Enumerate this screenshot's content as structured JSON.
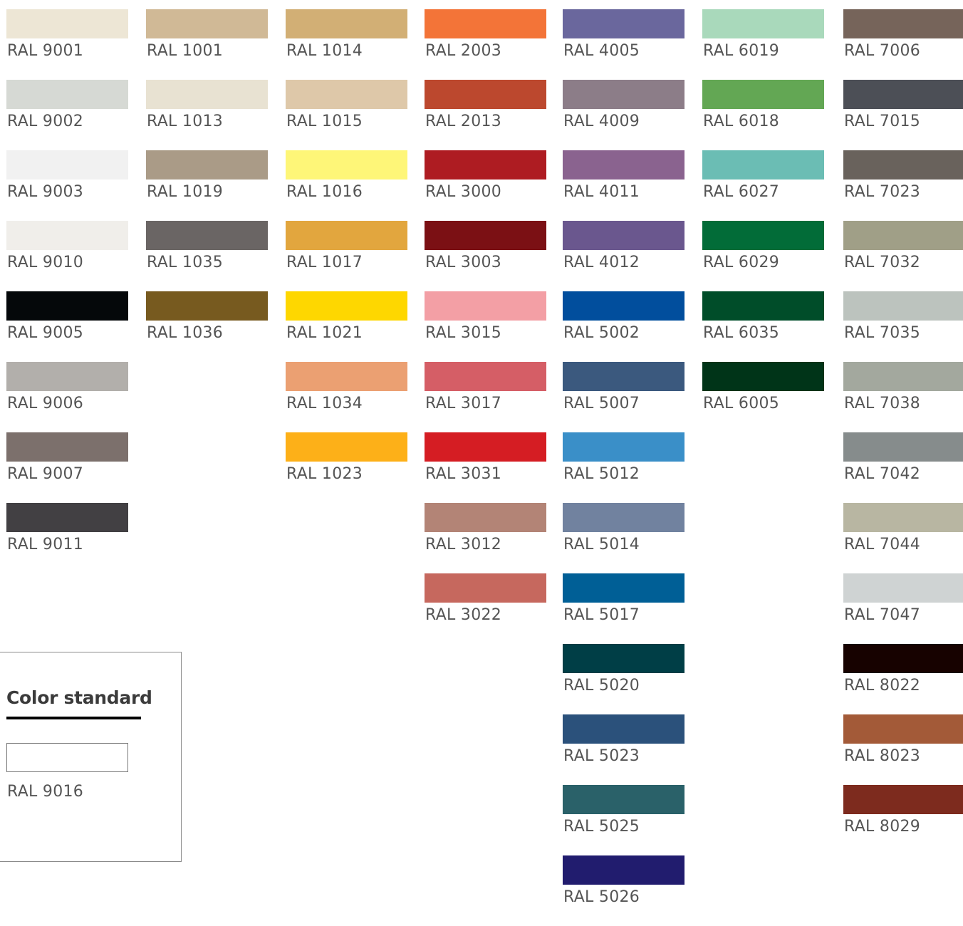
{
  "columns": [
    {
      "swatches": [
        {
          "label": "RAL 9001",
          "color": "#EDE6D5"
        },
        {
          "label": "RAL 9002",
          "color": "#D6D9D4"
        },
        {
          "label": "RAL 9003",
          "color": "#F1F1F1"
        },
        {
          "label": "RAL 9010",
          "color": "#F0EEEA"
        },
        {
          "label": "RAL 9005",
          "color": "#05080A"
        },
        {
          "label": "RAL 9006",
          "color": "#B2AFAB"
        },
        {
          "label": "RAL 9007",
          "color": "#7C706C"
        },
        {
          "label": "RAL 9011",
          "color": "#424043"
        }
      ]
    },
    {
      "swatches": [
        {
          "label": "RAL 1001",
          "color": "#D0B996"
        },
        {
          "label": "RAL 1013",
          "color": "#E8E2D2"
        },
        {
          "label": "RAL 1019",
          "color": "#AA9B87"
        },
        {
          "label": "RAL 1035",
          "color": "#6A6564"
        },
        {
          "label": "RAL 1036",
          "color": "#775A1F"
        }
      ]
    },
    {
      "swatches": [
        {
          "label": "RAL 1014",
          "color": "#D2AF75"
        },
        {
          "label": "RAL 1015",
          "color": "#DEC8A9"
        },
        {
          "label": "RAL 1016",
          "color": "#FEF678"
        },
        {
          "label": "RAL 1017",
          "color": "#E2A63E"
        },
        {
          "label": "RAL 1021",
          "color": "#FED700"
        },
        {
          "label": "RAL 1034",
          "color": "#EBA072"
        },
        {
          "label": "RAL 1023",
          "color": "#FDB018"
        }
      ]
    },
    {
      "swatches": [
        {
          "label": "RAL 2003",
          "color": "#F37438"
        },
        {
          "label": "RAL 2013",
          "color": "#BC482E"
        },
        {
          "label": "RAL 3000",
          "color": "#AE1C22"
        },
        {
          "label": "RAL 3003",
          "color": "#7B1014"
        },
        {
          "label": "RAL 3015",
          "color": "#F39FA5"
        },
        {
          "label": "RAL 3017",
          "color": "#D55E66"
        },
        {
          "label": "RAL 3031",
          "color": "#D51D23"
        },
        {
          "label": "RAL 3012",
          "color": "#B38476"
        },
        {
          "label": "RAL 3022",
          "color": "#C6685E"
        }
      ]
    },
    {
      "swatches": [
        {
          "label": "RAL 4005",
          "color": "#6A679D"
        },
        {
          "label": "RAL 4009",
          "color": "#8C7D88"
        },
        {
          "label": "RAL 4011",
          "color": "#8A638F"
        },
        {
          "label": "RAL 4012",
          "color": "#6A578E"
        },
        {
          "label": "RAL 5002",
          "color": "#014E9D"
        },
        {
          "label": "RAL 5007",
          "color": "#3B597E"
        },
        {
          "label": "RAL 5012",
          "color": "#3A8FC8"
        },
        {
          "label": "RAL 5014",
          "color": "#71829F"
        },
        {
          "label": "RAL 5017",
          "color": "#005F96"
        },
        {
          "label": "RAL 5020",
          "color": "#003E46"
        },
        {
          "label": "RAL 5023",
          "color": "#2B517B"
        },
        {
          "label": "RAL 5025",
          "color": "#2A6169"
        },
        {
          "label": "RAL 5026",
          "color": "#211C6E"
        }
      ]
    },
    {
      "swatches": [
        {
          "label": "RAL 6019",
          "color": "#A9D9BB"
        },
        {
          "label": "RAL 6018",
          "color": "#63A754"
        },
        {
          "label": "RAL 6027",
          "color": "#6BBDB4"
        },
        {
          "label": "RAL 6029",
          "color": "#026C38"
        },
        {
          "label": "RAL 6035",
          "color": "#004D29"
        },
        {
          "label": "RAL 6005",
          "color": "#003418"
        }
      ]
    },
    {
      "swatches": [
        {
          "label": "RAL 7006",
          "color": "#76645A"
        },
        {
          "label": "RAL 7015",
          "color": "#4C4F56"
        },
        {
          "label": "RAL 7023",
          "color": "#69625C"
        },
        {
          "label": "RAL 7032",
          "color": "#A09F87"
        },
        {
          "label": "RAL 7035",
          "color": "#BCC3BE"
        },
        {
          "label": "RAL 7038",
          "color": "#A3A89E"
        },
        {
          "label": "RAL 7042",
          "color": "#868C8C"
        },
        {
          "label": "RAL 7044",
          "color": "#B8B6A2"
        },
        {
          "label": "RAL 7047",
          "color": "#CFD3D3"
        },
        {
          "label": "RAL 8022",
          "color": "#170200"
        },
        {
          "label": "RAL 8023",
          "color": "#A35A38"
        },
        {
          "label": "RAL 8029",
          "color": "#7D2B1E"
        }
      ]
    }
  ],
  "standard": {
    "title": "Color standard",
    "swatch": {
      "label": "RAL 9016",
      "color": "#FFFFFF"
    }
  }
}
